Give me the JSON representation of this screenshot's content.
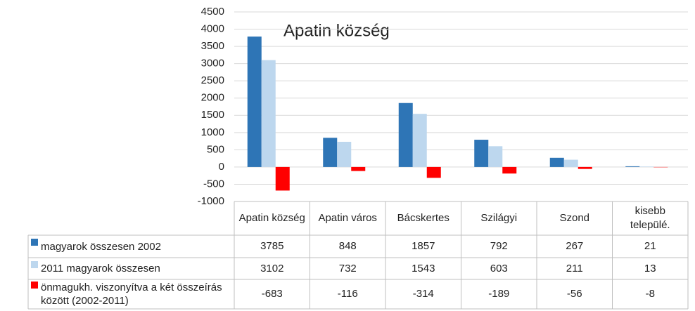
{
  "chart_data": {
    "type": "bar",
    "title": "Apatin község",
    "categories": [
      "Apatin község",
      "Apatin város",
      "Bácskertes",
      "Szilágyi",
      "Szond",
      "kisebb települé."
    ],
    "series": [
      {
        "name": "magyarok összesen 2002",
        "color": "#2e75b6",
        "values": [
          3785,
          848,
          1857,
          792,
          267,
          21
        ]
      },
      {
        "name": "2011 magyarok összesen",
        "color": "#bdd7ee",
        "values": [
          3102,
          732,
          1543,
          603,
          211,
          13
        ]
      },
      {
        "name": "önmagukh. viszonyítva a két összeírás között (2002-2011)",
        "color": "#ff0000",
        "values": [
          -683,
          -116,
          -314,
          -189,
          -56,
          -8
        ]
      }
    ],
    "ylim": [
      -1000,
      4500
    ],
    "yticks": [
      -1000,
      -500,
      0,
      500,
      1000,
      1500,
      2000,
      2500,
      3000,
      3500,
      4000,
      4500
    ],
    "grid": true
  }
}
